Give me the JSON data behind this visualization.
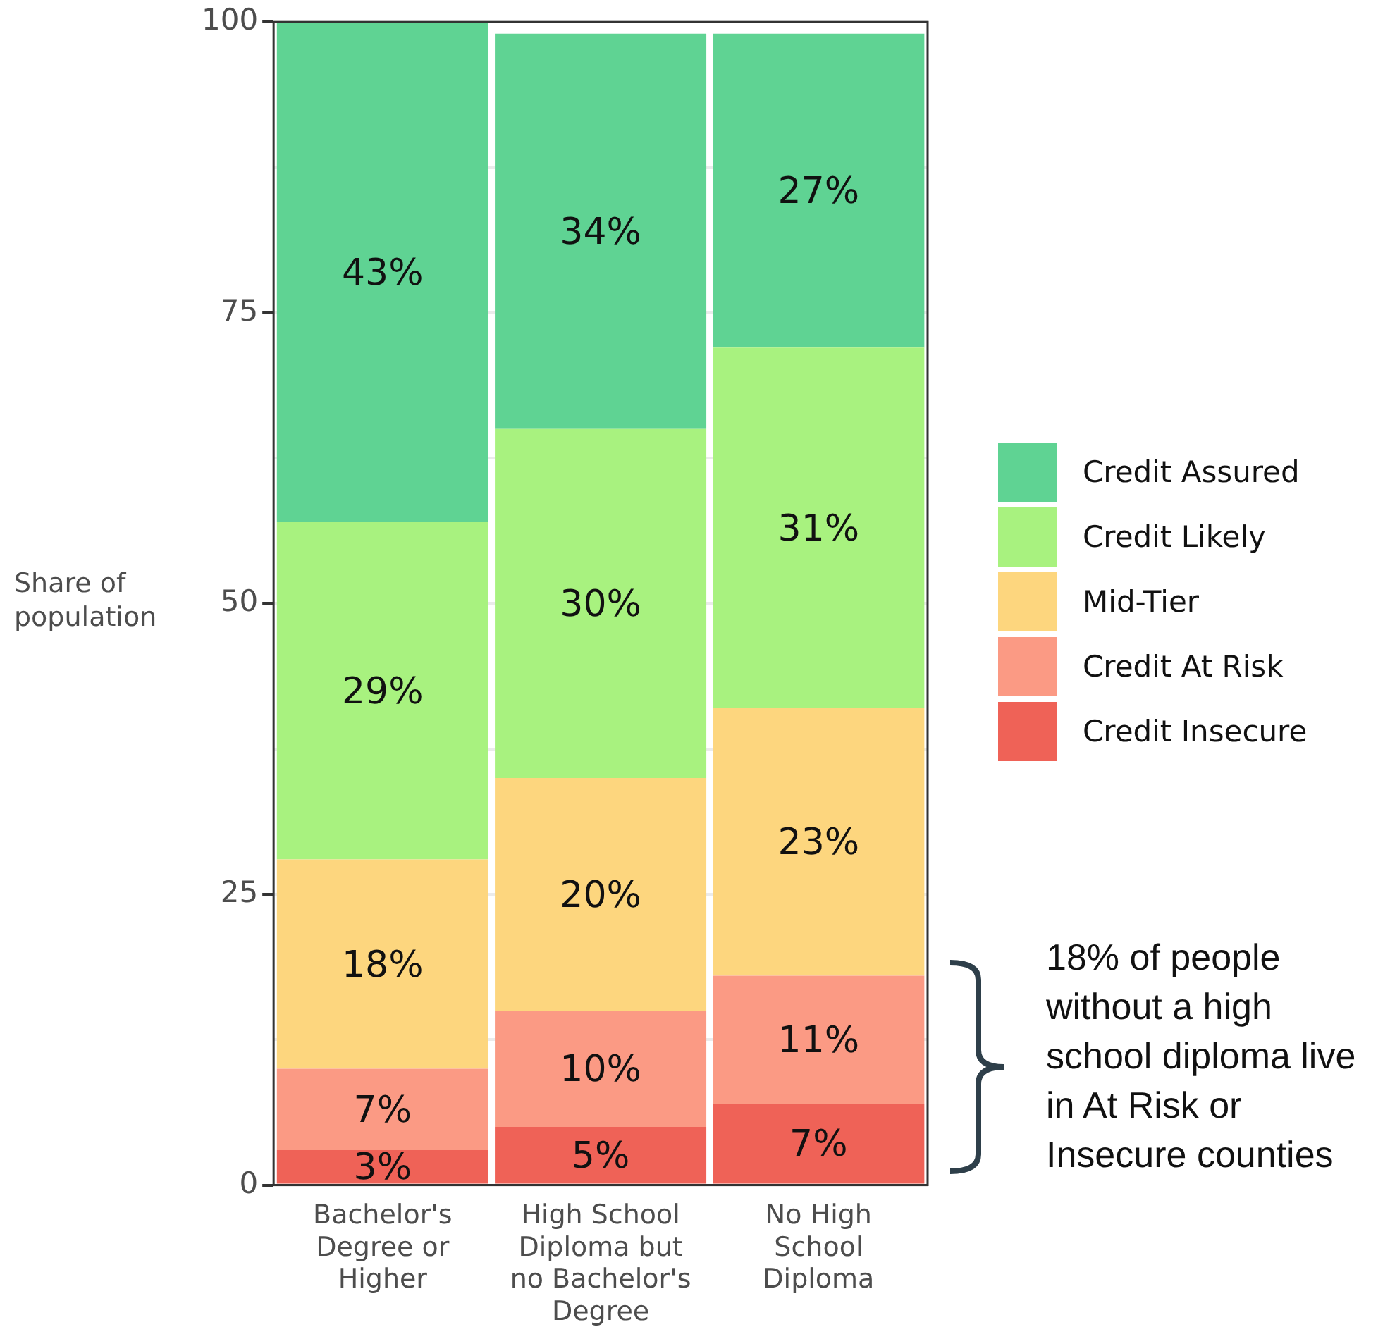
{
  "chart_data": {
    "type": "bar",
    "stacked": true,
    "ylabel": "Share of population",
    "categories": [
      "Bachelor's Degree or Higher",
      "High School Diploma but no Bachelor's Degree",
      "No High School Diploma"
    ],
    "series": [
      {
        "name": "Credit Insecure",
        "color": "#ef6257",
        "values": [
          3,
          5,
          7
        ],
        "value_labels": [
          "3%",
          "5%",
          "7%"
        ]
      },
      {
        "name": "Credit At Risk",
        "color": "#fb9a84",
        "values": [
          7,
          10,
          11
        ],
        "value_labels": [
          "7%",
          "10%",
          "11%"
        ]
      },
      {
        "name": "Mid-Tier",
        "color": "#fdd67e",
        "values": [
          18,
          20,
          23
        ],
        "value_labels": [
          "18%",
          "20%",
          "23%"
        ]
      },
      {
        "name": "Credit Likely",
        "color": "#a8f27f",
        "values": [
          29,
          30,
          31
        ],
        "value_labels": [
          "29%",
          "30%",
          "31%"
        ]
      },
      {
        "name": "Credit Assured",
        "color": "#5fd393",
        "values": [
          43,
          34,
          27
        ],
        "value_labels": [
          "43%",
          "34%",
          "27%"
        ]
      }
    ],
    "ylim": [
      0,
      100
    ],
    "yticks": [
      0,
      {
        "value": 12.5,
        "label": null
      },
      25,
      {
        "value": 37.5,
        "label": null
      },
      50,
      {
        "value": 62.5,
        "label": null
      },
      75,
      {
        "value": 87.5,
        "label": null
      },
      100
    ],
    "grid": "y",
    "legend": "right",
    "annotations": [
      "18% of people without a high school diploma live in At Risk or Insecure counties"
    ]
  }
}
